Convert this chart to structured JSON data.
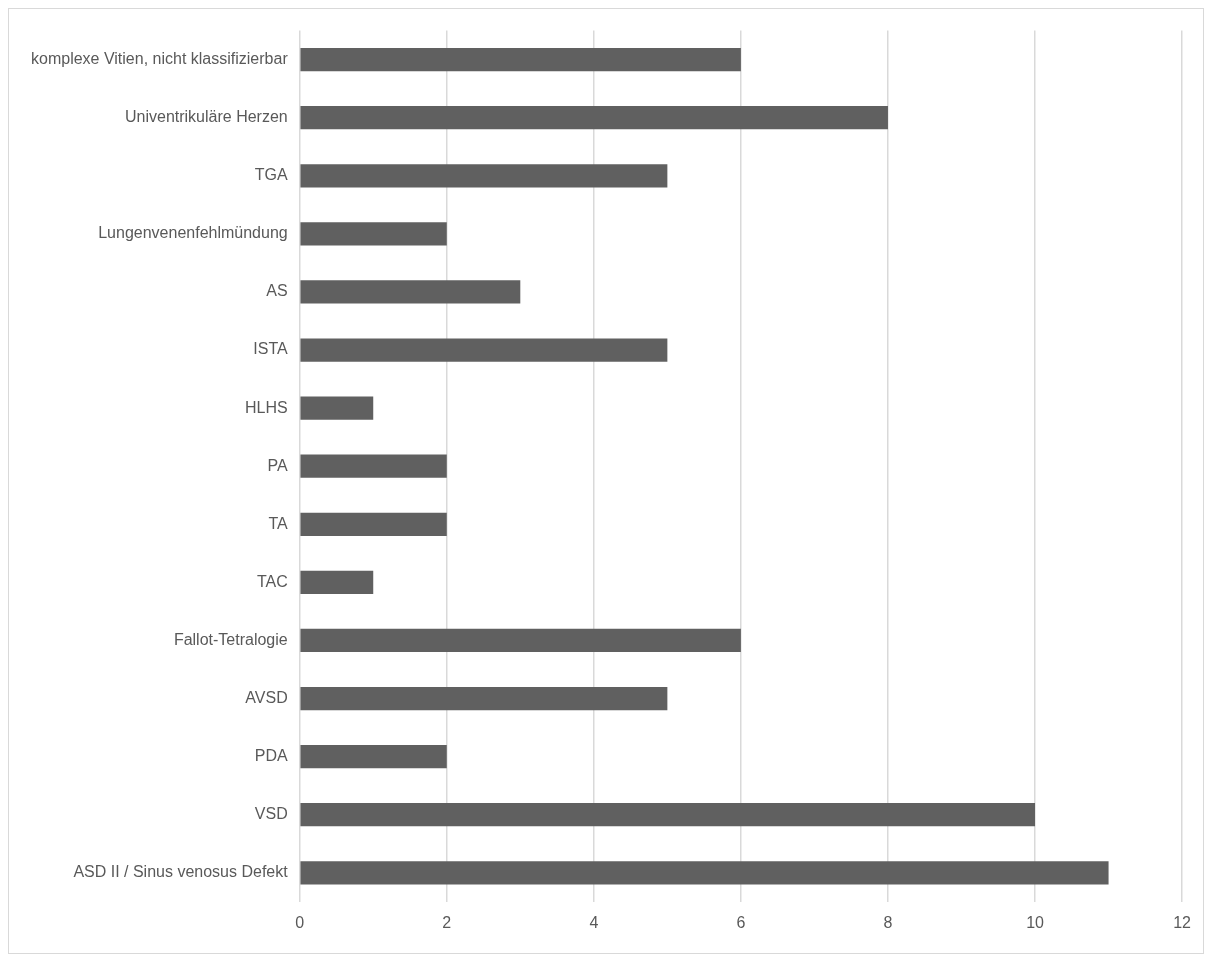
{
  "chart_data": {
    "type": "bar",
    "orientation": "horizontal",
    "categories": [
      "komplexe Vitien, nicht klassifizierbar",
      "Univentrikuläre Herzen",
      "TGA",
      "Lungenvenenfehlmündung",
      "AS",
      "ISTA",
      "HLHS",
      "PA",
      "TA",
      "TAC",
      "Fallot-Tetralogie",
      "AVSD",
      "PDA",
      "VSD",
      "ASD II / Sinus venosus Defekt"
    ],
    "values": [
      6,
      8,
      5,
      2,
      3,
      5,
      1,
      2,
      2,
      1,
      6,
      5,
      2,
      10,
      11
    ],
    "color": "#606060",
    "xlim": [
      0,
      12
    ],
    "xticks": [
      0,
      2,
      4,
      6,
      8,
      10,
      12
    ],
    "grid": "x",
    "legend": false
  }
}
